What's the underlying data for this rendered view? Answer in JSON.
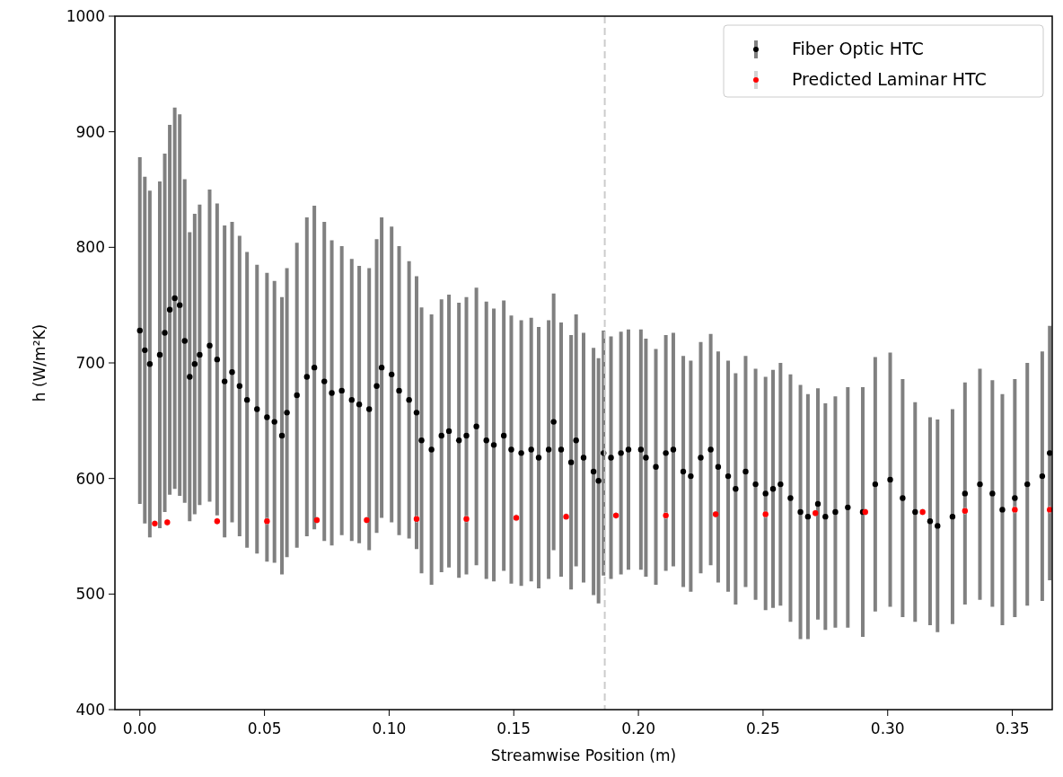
{
  "chart_data": {
    "type": "scatter",
    "xlabel": "Streamwise Position (m)",
    "ylabel": "h (W/m²K)",
    "xlim": [
      -0.01,
      0.366
    ],
    "ylim": [
      400,
      1000
    ],
    "xticks": [
      {
        "value": 0,
        "label": "0.00"
      },
      {
        "value": 0.05,
        "label": "0.05"
      },
      {
        "value": 0.1,
        "label": "0.10"
      },
      {
        "value": 0.15,
        "label": "0.15"
      },
      {
        "value": 0.2,
        "label": "0.20"
      },
      {
        "value": 0.25,
        "label": "0.25"
      },
      {
        "value": 0.3,
        "label": "0.30"
      },
      {
        "value": 0.35,
        "label": "0.35"
      }
    ],
    "yticks": [
      400,
      500,
      600,
      700,
      800,
      900,
      1000
    ],
    "grid": false,
    "legend": "top right",
    "marker": "circle",
    "ref_lines": [
      {
        "axis": "x",
        "value": 0.1865,
        "color": "#cccccc",
        "line_style": "dashed"
      }
    ],
    "series": [
      {
        "name": "Fiber Optic HTC",
        "color": "#000000",
        "x": [
          0,
          0.002,
          0.004,
          0.008,
          0.01,
          0.012,
          0.014,
          0.016,
          0.018,
          0.02,
          0.022,
          0.024,
          0.028,
          0.031,
          0.034,
          0.037,
          0.04,
          0.043,
          0.047,
          0.051,
          0.054,
          0.057,
          0.059,
          0.063,
          0.067,
          0.07,
          0.074,
          0.077,
          0.081,
          0.085,
          0.088,
          0.092,
          0.095,
          0.097,
          0.101,
          0.104,
          0.108,
          0.111,
          0.113,
          0.117,
          0.121,
          0.124,
          0.128,
          0.131,
          0.135,
          0.139,
          0.142,
          0.146,
          0.149,
          0.153,
          0.157,
          0.16,
          0.164,
          0.166,
          0.169,
          0.173,
          0.175,
          0.178,
          0.182,
          0.184,
          0.186,
          0.189,
          0.193,
          0.196,
          0.201,
          0.203,
          0.207,
          0.211,
          0.214,
          0.218,
          0.221,
          0.225,
          0.229,
          0.232,
          0.236,
          0.239,
          0.243,
          0.247,
          0.251,
          0.254,
          0.257,
          0.261,
          0.265,
          0.268,
          0.272,
          0.275,
          0.279,
          0.284,
          0.29,
          0.295,
          0.301,
          0.306,
          0.311,
          0.317,
          0.32,
          0.326,
          0.331,
          0.337,
          0.342,
          0.346,
          0.351,
          0.356,
          0.362,
          0.365
        ],
        "values": [
          728,
          711,
          699,
          707,
          726,
          746,
          756,
          750,
          719,
          688,
          699,
          707,
          715,
          703,
          684,
          692,
          680,
          668,
          660,
          653,
          649,
          637,
          657,
          672,
          688,
          696,
          684,
          674,
          676,
          668,
          664,
          660,
          680,
          696,
          690,
          676,
          668,
          657,
          633,
          625,
          637,
          641,
          633,
          637,
          645,
          633,
          629,
          637,
          625,
          622,
          625,
          618,
          625,
          649,
          625,
          614,
          633,
          618,
          606,
          598,
          622,
          618,
          622,
          625,
          625,
          618,
          610,
          622,
          625,
          606,
          602,
          618,
          625,
          610,
          602,
          591,
          606,
          595,
          587,
          591,
          595,
          583,
          571,
          567,
          578,
          567,
          571,
          575,
          571,
          595,
          599,
          583,
          571,
          563,
          559,
          567,
          587,
          595,
          587,
          573,
          583,
          595,
          602,
          622
        ],
        "errors": [
          150,
          150,
          150,
          150,
          155,
          160,
          165,
          165,
          140,
          125,
          130,
          130,
          135,
          135,
          135,
          130,
          130,
          128,
          125,
          125,
          122,
          120,
          125,
          132,
          138,
          140,
          138,
          132,
          125,
          122,
          120,
          122,
          127,
          130,
          128,
          125,
          120,
          118,
          115,
          117,
          118,
          118,
          119,
          120,
          120,
          120,
          118,
          117,
          116,
          115,
          114,
          113,
          112,
          111,
          110,
          110,
          109,
          108,
          107,
          106,
          106,
          105,
          105,
          104,
          104,
          103,
          102,
          102,
          101,
          100,
          100,
          100,
          100,
          100,
          100,
          100,
          100,
          100,
          101,
          103,
          105,
          107,
          110,
          106,
          100,
          98,
          100,
          104,
          108,
          110,
          110,
          103,
          95,
          90,
          92,
          93,
          96,
          100,
          98,
          100,
          103,
          105,
          108,
          110
        ]
      },
      {
        "name": "Predicted Laminar HTC",
        "color": "#ff0000",
        "x": [
          0.006,
          0.011,
          0.031,
          0.051,
          0.071,
          0.091,
          0.111,
          0.131,
          0.151,
          0.171,
          0.191,
          0.211,
          0.231,
          0.251,
          0.271,
          0.291,
          0.314,
          0.331,
          0.351,
          0.365
        ],
        "values": [
          561,
          562,
          563,
          563,
          564,
          564,
          565,
          565,
          566,
          567,
          568,
          568,
          569,
          569,
          570,
          571,
          571,
          572,
          573,
          573
        ],
        "errors": [
          3,
          3,
          3,
          3,
          3,
          3,
          3,
          3,
          3,
          3,
          3,
          3,
          3,
          3,
          3,
          3,
          3,
          3,
          3,
          3
        ]
      }
    ]
  }
}
